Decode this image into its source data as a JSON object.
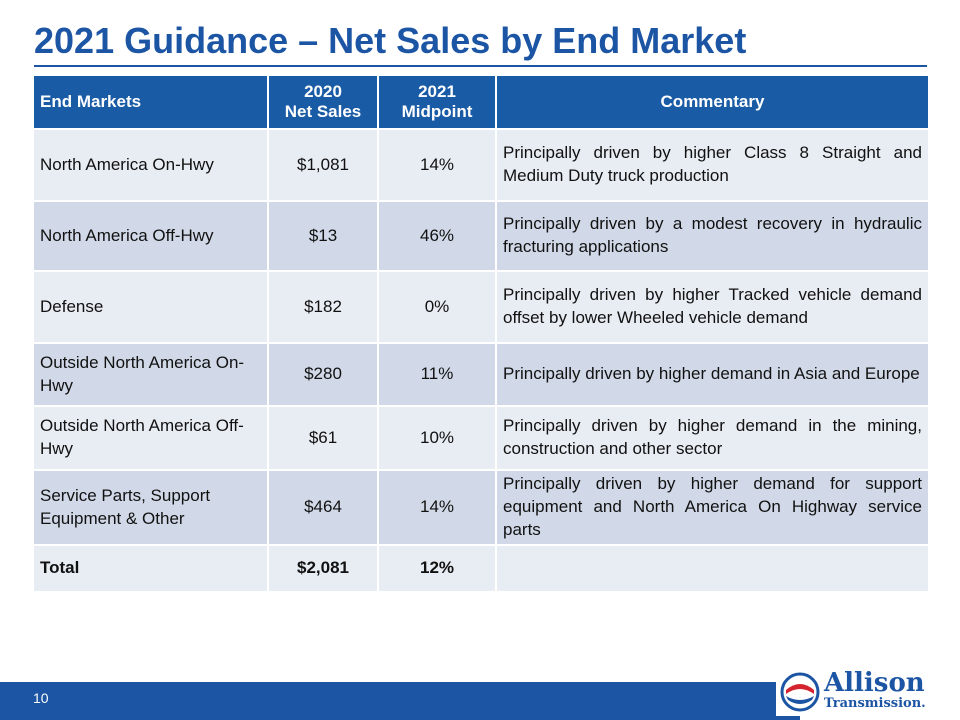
{
  "slide": {
    "title": "2021 Guidance – Net Sales by End Market",
    "page_number": "10"
  },
  "table": {
    "headers": {
      "end_markets": "End Markets",
      "net_sales_line1": "2020",
      "net_sales_line2": "Net Sales",
      "midpoint_line1": "2021",
      "midpoint_line2": "Midpoint",
      "commentary": "Commentary"
    },
    "rows": [
      {
        "market": "North America On-Hwy",
        "net_sales": "$1,081",
        "midpoint": "14%",
        "commentary": "Principally driven by higher Class 8 Straight and Medium Duty truck production"
      },
      {
        "market": "North America Off-Hwy",
        "net_sales": "$13",
        "midpoint": "46%",
        "commentary": "Principally driven by a modest recovery in hydraulic fracturing applications"
      },
      {
        "market": "Defense",
        "net_sales": "$182",
        "midpoint": "0%",
        "commentary": "Principally driven by higher Tracked vehicle demand  offset by lower Wheeled vehicle demand"
      },
      {
        "market": "Outside North America On-Hwy",
        "net_sales": "$280",
        "midpoint": "11%",
        "commentary": "Principally driven by higher demand in Asia and Europe"
      },
      {
        "market": "Outside North America Off-Hwy",
        "net_sales": "$61",
        "midpoint": "10%",
        "commentary": "Principally driven by higher demand in the mining, construction and other sector"
      },
      {
        "market": "Service Parts, Support Equipment & Other",
        "net_sales": "$464",
        "midpoint": "14%",
        "commentary": "Principally driven by higher demand for support equipment and North America On Highway service parts"
      }
    ],
    "total": {
      "market": "Total",
      "net_sales": "$2,081",
      "midpoint": "12%",
      "commentary": ""
    }
  },
  "logo": {
    "name": "Allison",
    "sub": "Transmission."
  },
  "colors": {
    "brand_blue": "#1c55a4",
    "header_blue": "#1a5ba6",
    "row_light": "#e8ecf3",
    "row_dark": "#d1d9e8",
    "logo_red": "#d4252f"
  }
}
